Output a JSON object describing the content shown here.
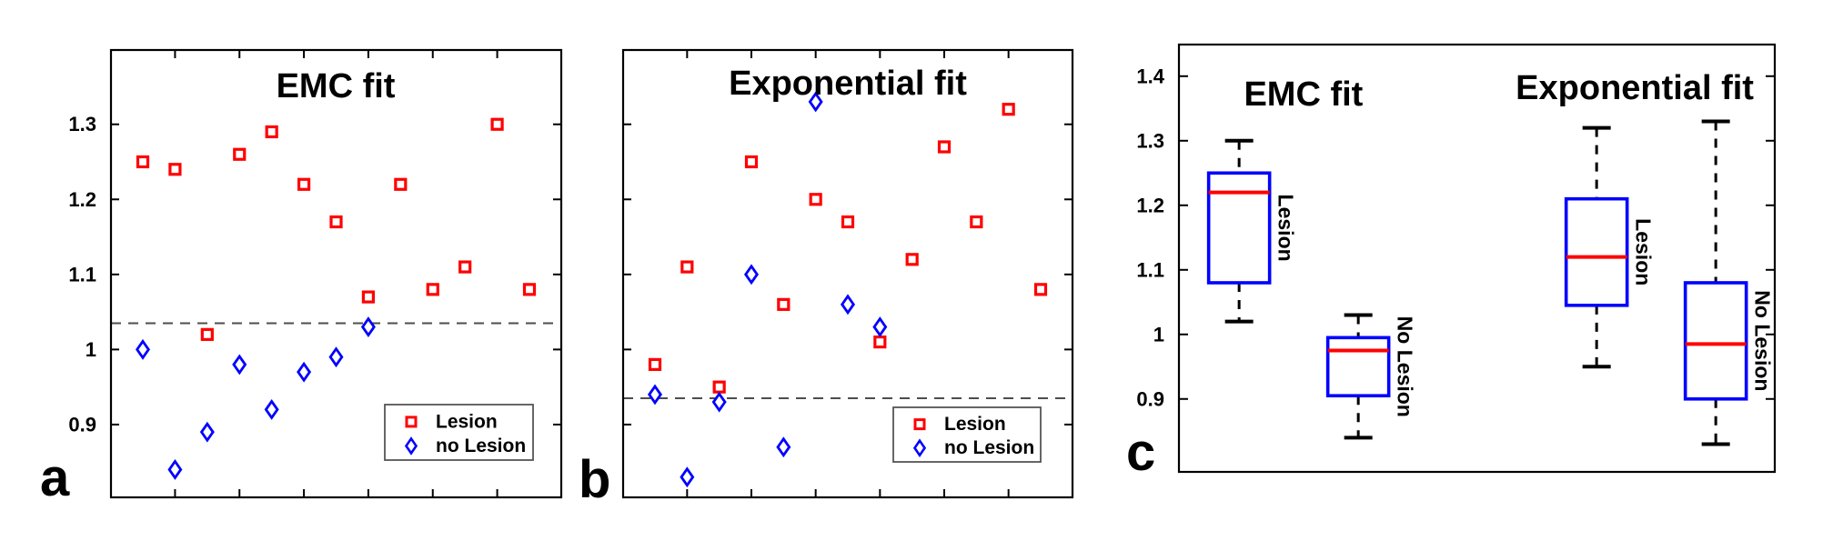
{
  "colors": {
    "lesion": "#ff0000",
    "no_lesion": "#0000ff",
    "box_outline": "#0000ff",
    "median": "#ff0000",
    "axis": "#000000",
    "whisker": "#000000",
    "reference_line": "#4d4d4d",
    "legend_border": "#555555",
    "background": "#ffffff"
  },
  "chart_data": [
    {
      "panel_label": "a",
      "type": "scatter",
      "title": "EMC fit",
      "ylim": [
        0.803,
        1.399
      ],
      "ytick_values": [
        1.3,
        1.2,
        1.1,
        1.0,
        0.9
      ],
      "ytick_labels": [
        "1.3",
        "1.2",
        "1.1",
        "1",
        "0.9"
      ],
      "show_ytick_labels": true,
      "x_slots": 13,
      "grid": false,
      "reference_line": 1.035,
      "series": [
        {
          "name": "Lesion",
          "marker": "square",
          "color": "#ff0000",
          "points": [
            [
              1,
              1.25
            ],
            [
              2,
              1.24
            ],
            [
              3,
              1.02
            ],
            [
              4,
              1.26
            ],
            [
              5,
              1.29
            ],
            [
              6,
              1.22
            ],
            [
              7,
              1.17
            ],
            [
              8,
              1.07
            ],
            [
              9,
              1.22
            ],
            [
              10,
              1.08
            ],
            [
              11,
              1.11
            ],
            [
              12,
              1.3
            ],
            [
              13,
              1.08
            ]
          ]
        },
        {
          "name": "no Lesion",
          "marker": "diamond",
          "color": "#0000ff",
          "points": [
            [
              1,
              1.0
            ],
            [
              2,
              0.84
            ],
            [
              3,
              0.89
            ],
            [
              4,
              0.98
            ],
            [
              5,
              0.92
            ],
            [
              6,
              0.97
            ],
            [
              7,
              0.99
            ],
            [
              8,
              1.03
            ]
          ]
        }
      ],
      "legend": {
        "position": "bottom-right",
        "items": [
          {
            "label": "Lesion",
            "marker": "square",
            "color": "#ff0000"
          },
          {
            "label": "no Lesion",
            "marker": "diamond",
            "color": "#0000ff"
          }
        ]
      }
    },
    {
      "panel_label": "b",
      "type": "scatter",
      "title": "Exponential fit",
      "ylim": [
        0.803,
        1.399
      ],
      "ytick_values": [
        1.3,
        1.2,
        1.1,
        1.0,
        0.9
      ],
      "ytick_labels": [
        "1.3",
        "1.2",
        "1.1",
        "1",
        "0.9"
      ],
      "show_ytick_labels": false,
      "x_slots": 13,
      "grid": false,
      "reference_line": 0.935,
      "series": [
        {
          "name": "Lesion",
          "marker": "square",
          "color": "#ff0000",
          "points": [
            [
              1,
              0.98
            ],
            [
              2,
              1.11
            ],
            [
              3,
              0.95
            ],
            [
              4,
              1.25
            ],
            [
              5,
              1.06
            ],
            [
              6,
              1.2
            ],
            [
              7,
              1.17
            ],
            [
              8,
              1.01
            ],
            [
              9,
              1.12
            ],
            [
              10,
              1.27
            ],
            [
              11,
              1.17
            ],
            [
              12,
              1.32
            ],
            [
              13,
              1.08
            ]
          ]
        },
        {
          "name": "no Lesion",
          "marker": "diamond",
          "color": "#0000ff",
          "points": [
            [
              1,
              0.94
            ],
            [
              2,
              0.83
            ],
            [
              3,
              0.93
            ],
            [
              4,
              1.1
            ],
            [
              5,
              0.87
            ],
            [
              6,
              1.33
            ],
            [
              7,
              1.06
            ],
            [
              8,
              1.03
            ]
          ]
        }
      ],
      "legend": {
        "position": "bottom-right",
        "items": [
          {
            "label": "Lesion",
            "marker": "square",
            "color": "#ff0000"
          },
          {
            "label": "no Lesion",
            "marker": "diamond",
            "color": "#0000ff"
          }
        ]
      }
    },
    {
      "panel_label": "c",
      "type": "box",
      "groups": [
        {
          "title": "EMC fit"
        },
        {
          "title": "Exponential fit"
        }
      ],
      "ylim": [
        0.787,
        1.449
      ],
      "ytick_values": [
        1.4,
        1.3,
        1.2,
        1.1,
        1.0,
        0.9
      ],
      "ytick_labels": [
        "1.4",
        "1.3",
        "1.2",
        "1.1",
        "1",
        "0.9"
      ],
      "boxes": [
        {
          "group": "EMC fit",
          "label": "Lesion",
          "whisker_low": 1.02,
          "q1": 1.08,
          "median": 1.22,
          "q3": 1.25,
          "whisker_high": 1.3
        },
        {
          "group": "EMC fit",
          "label": "No Lesion",
          "whisker_low": 0.84,
          "q1": 0.905,
          "median": 0.975,
          "q3": 0.995,
          "whisker_high": 1.03
        },
        {
          "group": "Exponential fit",
          "label": "Lesion",
          "whisker_low": 0.95,
          "q1": 1.045,
          "median": 1.12,
          "q3": 1.21,
          "whisker_high": 1.32
        },
        {
          "group": "Exponential fit",
          "label": "No Lesion",
          "whisker_low": 0.83,
          "q1": 0.9,
          "median": 0.985,
          "q3": 1.08,
          "whisker_high": 1.33
        }
      ]
    }
  ]
}
